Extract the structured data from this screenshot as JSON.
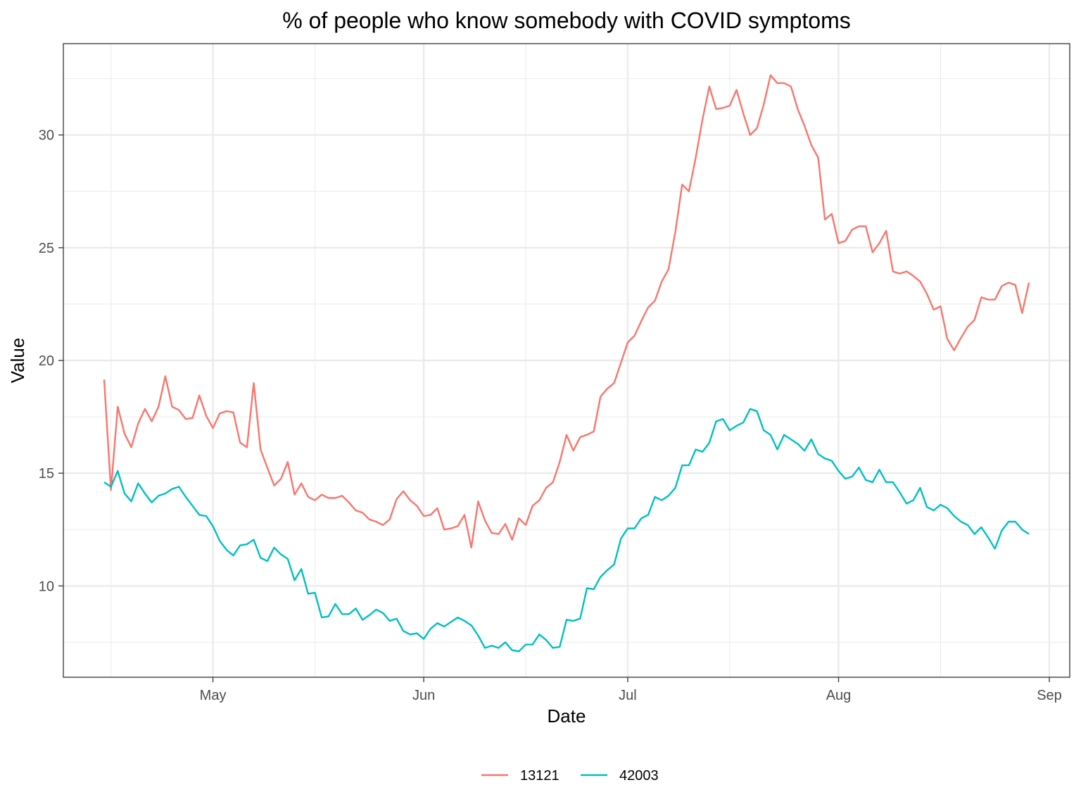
{
  "chart_data": {
    "type": "line",
    "title": "% of people who know somebody with COVID symptoms",
    "xlabel": "Date",
    "ylabel": "Value",
    "x_type": "date",
    "x_start": "2020-04-15",
    "xlim": [
      "2020-04-09",
      "2020-09-04"
    ],
    "ylim": [
      5.95,
      34.05
    ],
    "x_ticks": [
      {
        "date": "2020-05-01",
        "label": "May"
      },
      {
        "date": "2020-06-01",
        "label": "Jun"
      },
      {
        "date": "2020-07-01",
        "label": "Jul"
      },
      {
        "date": "2020-08-01",
        "label": "Aug"
      },
      {
        "date": "2020-09-01",
        "label": "Sep"
      }
    ],
    "x_minor_ticks": [
      "2020-04-16",
      "2020-05-16",
      "2020-06-16",
      "2020-07-16",
      "2020-08-16"
    ],
    "y_ticks": [
      10,
      15,
      20,
      25,
      30
    ],
    "y_minor_ticks": [
      7.5,
      12.5,
      17.5,
      22.5,
      27.5,
      32.5
    ],
    "grid": true,
    "legend": {
      "position": "bottom"
    },
    "series": [
      {
        "name": "13121",
        "color": "#F8766D",
        "values": [
          19.15,
          14.25,
          17.95,
          16.75,
          16.15,
          17.2,
          17.85,
          17.3,
          17.95,
          19.3,
          17.95,
          17.8,
          17.4,
          17.45,
          18.45,
          17.55,
          17.0,
          17.65,
          17.75,
          17.7,
          16.35,
          16.15,
          19.0,
          16.05,
          15.25,
          14.45,
          14.75,
          15.5,
          14.05,
          14.55,
          13.95,
          13.8,
          14.05,
          13.9,
          13.9,
          14.0,
          13.7,
          13.35,
          13.25,
          12.95,
          12.85,
          12.7,
          12.95,
          13.85,
          14.2,
          13.8,
          13.55,
          13.1,
          13.15,
          13.45,
          12.5,
          12.55,
          12.65,
          13.15,
          11.7,
          13.75,
          12.9,
          12.35,
          12.3,
          12.75,
          12.05,
          13.0,
          12.7,
          13.55,
          13.8,
          14.35,
          14.6,
          15.5,
          16.7,
          16.0,
          16.6,
          16.7,
          16.85,
          18.4,
          18.75,
          19.0,
          19.9,
          20.8,
          21.1,
          21.75,
          22.35,
          22.65,
          23.5,
          24.05,
          25.7,
          27.8,
          27.5,
          29.0,
          30.7,
          32.15,
          31.15,
          31.2,
          31.3,
          32.0,
          30.95,
          30.0,
          30.3,
          31.35,
          32.65,
          32.3,
          32.3,
          32.15,
          31.15,
          30.4,
          29.55,
          29.0,
          26.25,
          26.5,
          25.2,
          25.3,
          25.8,
          25.95,
          25.95,
          24.8,
          25.2,
          25.75,
          23.95,
          23.85,
          23.95,
          23.75,
          23.5,
          22.95,
          22.25,
          22.4,
          20.95,
          20.45,
          21.0,
          21.5,
          21.8,
          22.8,
          22.7,
          22.7,
          23.3,
          23.45,
          23.35,
          22.1,
          23.45
        ]
      },
      {
        "name": "42003",
        "color": "#00BFC4",
        "values": [
          14.6,
          14.4,
          15.1,
          14.1,
          13.75,
          14.55,
          14.1,
          13.7,
          14.0,
          14.1,
          14.3,
          14.4,
          13.95,
          13.55,
          13.15,
          13.1,
          12.65,
          12.0,
          11.6,
          11.35,
          11.8,
          11.85,
          12.05,
          11.25,
          11.1,
          11.7,
          11.4,
          11.2,
          10.25,
          10.75,
          9.65,
          9.7,
          8.6,
          8.65,
          9.2,
          8.75,
          8.75,
          9.0,
          8.5,
          8.7,
          8.95,
          8.8,
          8.45,
          8.55,
          8.0,
          7.85,
          7.9,
          7.65,
          8.1,
          8.35,
          8.2,
          8.4,
          8.6,
          8.45,
          8.25,
          7.8,
          7.25,
          7.35,
          7.25,
          7.5,
          7.15,
          7.1,
          7.4,
          7.4,
          7.85,
          7.6,
          7.25,
          7.3,
          8.5,
          8.45,
          8.55,
          9.9,
          9.85,
          10.4,
          10.7,
          10.95,
          12.1,
          12.55,
          12.55,
          13.0,
          13.15,
          13.95,
          13.8,
          14.0,
          14.35,
          15.35,
          15.35,
          16.05,
          15.95,
          16.35,
          17.3,
          17.4,
          16.9,
          17.1,
          17.25,
          17.85,
          17.75,
          16.9,
          16.7,
          16.05,
          16.7,
          16.5,
          16.3,
          16.0,
          16.5,
          15.85,
          15.65,
          15.55,
          15.1,
          14.75,
          14.85,
          15.25,
          14.7,
          14.6,
          15.15,
          14.6,
          14.6,
          14.15,
          13.65,
          13.8,
          14.35,
          13.5,
          13.35,
          13.6,
          13.45,
          13.1,
          12.85,
          12.7,
          12.3,
          12.6,
          12.15,
          11.65,
          12.45,
          12.85,
          12.85,
          12.5,
          12.3
        ]
      }
    ]
  }
}
